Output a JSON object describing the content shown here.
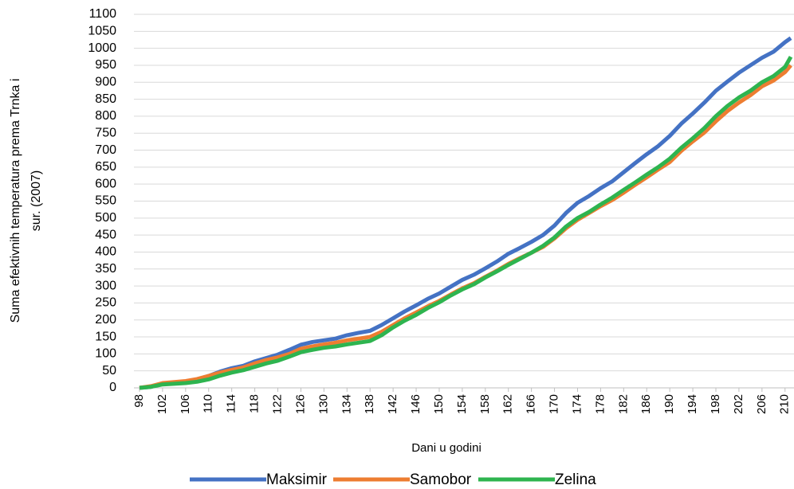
{
  "chart_data": {
    "type": "line",
    "xlabel": "Dani u godini",
    "ylabel": [
      "Suma efektivnih temperatura prema Trnka i",
      "sur. (2007)"
    ],
    "x": [
      98,
      100,
      102,
      104,
      106,
      108,
      110,
      112,
      114,
      116,
      118,
      120,
      122,
      124,
      126,
      128,
      130,
      132,
      134,
      136,
      138,
      140,
      142,
      144,
      146,
      148,
      150,
      152,
      154,
      156,
      158,
      160,
      162,
      164,
      166,
      168,
      170,
      172,
      174,
      176,
      178,
      180,
      182,
      184,
      186,
      188,
      190,
      192,
      194,
      196,
      198,
      200,
      202,
      204,
      206,
      208,
      210,
      211
    ],
    "xlim": [
      98,
      211
    ],
    "xticks": [
      98,
      102,
      106,
      110,
      114,
      118,
      122,
      126,
      130,
      134,
      138,
      142,
      146,
      150,
      154,
      158,
      162,
      166,
      170,
      174,
      178,
      182,
      186,
      190,
      194,
      198,
      202,
      206,
      210
    ],
    "ylim": [
      0,
      1100
    ],
    "yticks": [
      0,
      50,
      100,
      150,
      200,
      250,
      300,
      350,
      400,
      450,
      500,
      550,
      600,
      650,
      700,
      750,
      800,
      850,
      900,
      950,
      1000,
      1050,
      1100
    ],
    "grid": true,
    "legend": "bottom",
    "series": [
      {
        "name": "Maksimir",
        "color": "#4472c4",
        "values": [
          0,
          3,
          12,
          15,
          18,
          25,
          35,
          48,
          58,
          65,
          78,
          88,
          98,
          112,
          127,
          135,
          140,
          145,
          155,
          162,
          168,
          185,
          205,
          225,
          243,
          262,
          278,
          298,
          318,
          333,
          352,
          372,
          395,
          412,
          430,
          450,
          478,
          515,
          545,
          565,
          588,
          608,
          635,
          662,
          688,
          712,
          742,
          778,
          808,
          840,
          875,
          902,
          928,
          950,
          972,
          990,
          1018,
          1030
        ]
      },
      {
        "name": "Samobor",
        "color": "#ed7d31",
        "values": [
          0,
          5,
          14,
          17,
          20,
          26,
          35,
          45,
          53,
          60,
          72,
          82,
          90,
          100,
          115,
          122,
          128,
          133,
          140,
          145,
          150,
          165,
          185,
          205,
          222,
          240,
          256,
          275,
          293,
          308,
          327,
          345,
          365,
          382,
          398,
          415,
          440,
          470,
          495,
          515,
          535,
          553,
          575,
          598,
          620,
          643,
          665,
          698,
          726,
          752,
          785,
          815,
          840,
          862,
          888,
          905,
          930,
          950
        ]
      },
      {
        "name": "Zelina",
        "color": "#2eb44f",
        "values": [
          0,
          3,
          10,
          12,
          14,
          18,
          25,
          36,
          45,
          52,
          62,
          72,
          80,
          92,
          105,
          112,
          118,
          122,
          128,
          133,
          138,
          155,
          178,
          198,
          215,
          235,
          252,
          272,
          290,
          305,
          325,
          343,
          362,
          380,
          398,
          418,
          443,
          475,
          500,
          518,
          540,
          560,
          583,
          605,
          628,
          650,
          675,
          707,
          735,
          765,
          800,
          830,
          855,
          875,
          900,
          918,
          945,
          975
        ]
      }
    ]
  }
}
